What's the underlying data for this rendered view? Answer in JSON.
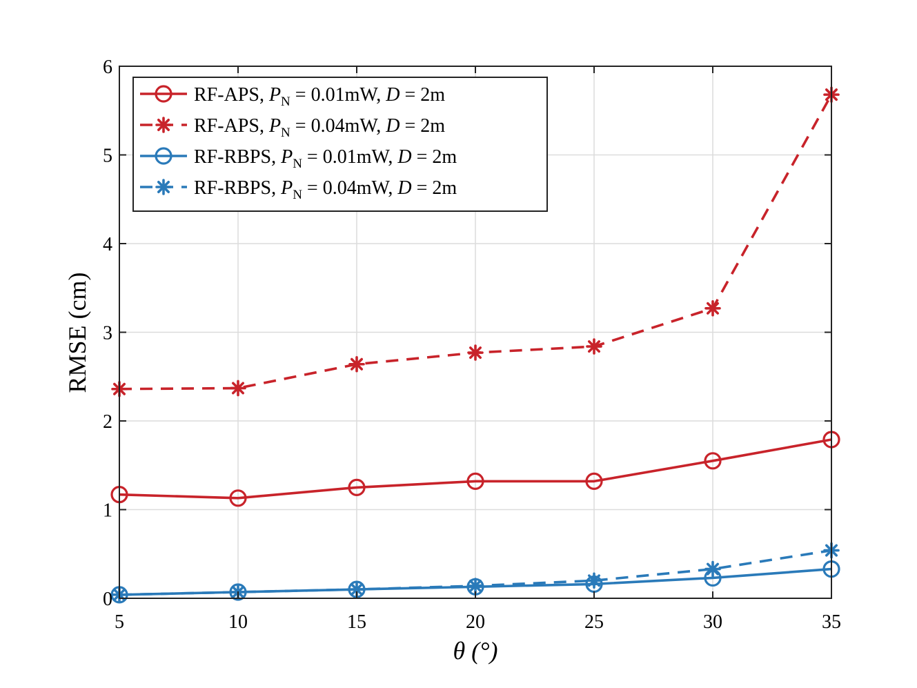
{
  "chart_data": {
    "type": "line",
    "title": "",
    "xlabel": "θ (°)",
    "ylabel": "RMSE (cm)",
    "xlim": [
      5,
      35
    ],
    "ylim": [
      0,
      6
    ],
    "x": [
      5,
      10,
      15,
      20,
      25,
      30,
      35
    ],
    "xticks": [
      "5",
      "10",
      "15",
      "20",
      "25",
      "30",
      "35"
    ],
    "yticks": [
      "0",
      "1",
      "2",
      "3",
      "4",
      "5",
      "6"
    ],
    "grid": true,
    "legend_position": "top-left",
    "series": [
      {
        "name": "RF-APS, P_N = 0.01mW, D = 2m",
        "legend_label": {
          "method": "RF-APS,",
          "power": "0.01mW,",
          "dist": "2m"
        },
        "color": "#c8232a",
        "line_style": "solid",
        "marker": "circle",
        "values": [
          1.17,
          1.13,
          1.25,
          1.32,
          1.32,
          1.55,
          1.79
        ]
      },
      {
        "name": "RF-APS, P_N = 0.04mW, D = 2m",
        "legend_label": {
          "method": "RF-APS,",
          "power": "0.04mW,",
          "dist": "2m"
        },
        "color": "#c8232a",
        "line_style": "dashed",
        "marker": "asterisk",
        "values": [
          2.36,
          2.37,
          2.64,
          2.77,
          2.84,
          3.27,
          5.68
        ]
      },
      {
        "name": "RF-RBPS, P_N = 0.01mW, D = 2m",
        "legend_label": {
          "method": "RF-RBPS,",
          "power": "0.01mW,",
          "dist": "2m"
        },
        "color": "#2a7ab9",
        "line_style": "solid",
        "marker": "circle",
        "values": [
          0.04,
          0.07,
          0.1,
          0.13,
          0.16,
          0.23,
          0.33
        ]
      },
      {
        "name": "RF-RBPS, P_N = 0.04mW, D = 2m",
        "legend_label": {
          "method": "RF-RBPS,",
          "power": "0.04mW,",
          "dist": "2m"
        },
        "color": "#2a7ab9",
        "line_style": "dashed",
        "marker": "asterisk",
        "values": [
          0.04,
          0.07,
          0.1,
          0.14,
          0.2,
          0.33,
          0.54
        ]
      }
    ]
  }
}
